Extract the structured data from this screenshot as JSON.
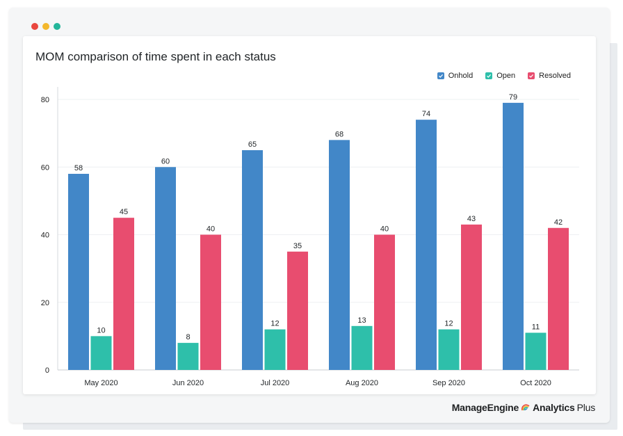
{
  "window": {
    "controls": [
      {
        "name": "close",
        "color": "#e9473f"
      },
      {
        "name": "minimize",
        "color": "#f3b72c"
      },
      {
        "name": "maximize",
        "color": "#23b59a"
      }
    ]
  },
  "branding": {
    "company": "ManageEngine",
    "product": "Analytics",
    "suffix": "Plus"
  },
  "chart_data": {
    "type": "bar",
    "title": "MOM comparison of time spent in each status",
    "xlabel": "",
    "ylabel": "",
    "categories": [
      "May 2020",
      "Jun 2020",
      "Jul 2020",
      "Aug 2020",
      "Sep 2020",
      "Oct 2020"
    ],
    "series": [
      {
        "name": "Onhold",
        "color": "#4287c8",
        "values": [
          58,
          60,
          65,
          68,
          74,
          79
        ]
      },
      {
        "name": "Open",
        "color": "#2ebfaa",
        "values": [
          10,
          8,
          12,
          13,
          12,
          11
        ]
      },
      {
        "name": "Resolved",
        "color": "#e84d6f",
        "values": [
          45,
          40,
          35,
          40,
          43,
          42
        ]
      }
    ],
    "ylim": [
      0,
      80
    ],
    "yticks": [
      0,
      20,
      40,
      60,
      80
    ],
    "grid": true,
    "legend_position": "top-right",
    "data_labels": true
  }
}
